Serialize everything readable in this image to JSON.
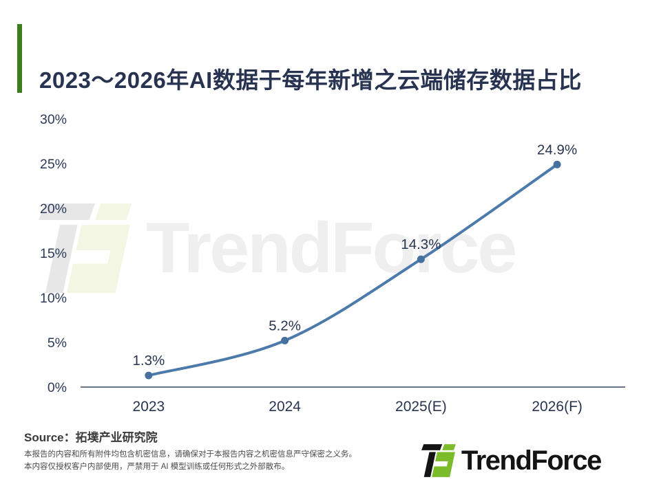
{
  "header": {
    "title": "2023～2026年AI数据于每年新增之云端储存数据占比",
    "accent_color": "#3C7D1F",
    "title_color": "#273350"
  },
  "chart_data": {
    "type": "line",
    "categories": [
      "2023",
      "2024",
      "2025(E)",
      "2026(F)"
    ],
    "values": [
      1.3,
      5.2,
      14.3,
      24.9
    ],
    "point_labels": [
      "1.3%",
      "5.2%",
      "14.3%",
      "24.9%"
    ],
    "y_ticks": [
      "0%",
      "5%",
      "10%",
      "15%",
      "20%",
      "25%",
      "30%"
    ],
    "ylim": [
      0,
      30
    ],
    "y_tick_step": 5,
    "grid": false,
    "legend": "none",
    "line_color": "#4C7AAB",
    "marker_color": "#46719F",
    "axis_color": "#39455E",
    "tick_label_color": "#2A3A58",
    "data_label_color": "#27334F"
  },
  "watermark": {
    "text": "TrendForce",
    "text_color": "#EFEFEF",
    "icon_dark_color": "#E7E7E7",
    "icon_green_color": "#F3F6E3"
  },
  "footer": {
    "source": "Source：拓墣产业研究院",
    "disclaimer": [
      "本报告的内容和所有附件均包含机密信息，请确保对于本报告内容之机密信息严守保密之义务。",
      "本内容仅授权客户内部使用，严禁用于 AI 模型训练或任何形式之外部散布。"
    ],
    "logo_text": "TrendForce",
    "logo_dark_color": "#141414",
    "logo_green_color": "#7CBB2A"
  }
}
